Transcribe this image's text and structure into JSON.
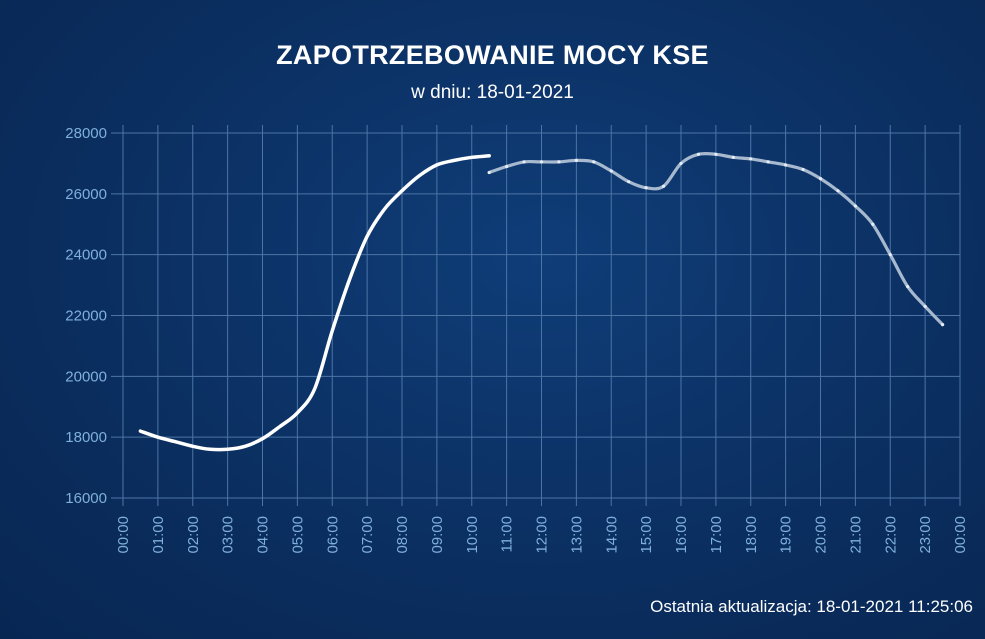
{
  "header": {
    "title": "ZAPOTRZEBOWANIE MOCY KSE",
    "subtitle": "w dniu: 18-01-2021"
  },
  "footer": {
    "updated": "Ostatnia aktualizacja: 18-01-2021 11:25:06"
  },
  "colors": {
    "background": "#0b2f61",
    "grid": "#4c74a6",
    "tick_label": "#7fb0dc",
    "actual_line": "#ffffff",
    "forecast_line": "#a7b9cf"
  },
  "chart_data": {
    "type": "line",
    "title": "ZAPOTRZEBOWANIE MOCY KSE",
    "subtitle": "w dniu: 18-01-2021",
    "xlabel": "",
    "ylabel": "",
    "ylim": [
      16000,
      28000
    ],
    "y_ticks": [
      16000,
      18000,
      20000,
      22000,
      24000,
      26000,
      28000
    ],
    "y_tick_labels": [
      "16000",
      "18000",
      "20000",
      "22000",
      "24000",
      "26000",
      "28000"
    ],
    "x_tick_labels": [
      "00:00",
      "01:00",
      "02:00",
      "03:00",
      "04:00",
      "05:00",
      "06:00",
      "07:00",
      "08:00",
      "09:00",
      "10:00",
      "11:00",
      "12:00",
      "13:00",
      "14:00",
      "15:00",
      "16:00",
      "17:00",
      "18:00",
      "19:00",
      "20:00",
      "21:00",
      "22:00",
      "23:00",
      "00:00"
    ],
    "grid": true,
    "legend": "none",
    "series": [
      {
        "style": "actual",
        "x": [
          0.5,
          1.0,
          1.5,
          2.0,
          2.5,
          3.0,
          3.5,
          4.0,
          4.5,
          5.0,
          5.5,
          6.0,
          6.5,
          7.0,
          7.5,
          8.0,
          8.5,
          9.0,
          9.5,
          10.0,
          10.5
        ],
        "values": [
          18200,
          18000,
          17850,
          17700,
          17600,
          17600,
          17700,
          17950,
          18350,
          18800,
          19600,
          21500,
          23200,
          24600,
          25500,
          26100,
          26600,
          26950,
          27100,
          27200,
          27250
        ]
      },
      {
        "style": "forecast",
        "x": [
          10.5,
          11.0,
          11.5,
          12.0,
          12.5,
          13.0,
          13.5,
          14.0,
          14.5,
          15.0,
          15.5,
          16.0,
          16.5,
          17.0,
          17.5,
          18.0,
          18.5,
          19.0,
          19.5,
          20.0,
          20.5,
          21.0,
          21.5,
          22.0,
          22.5,
          23.0,
          23.5
        ],
        "values": [
          26700,
          26900,
          27050,
          27050,
          27050,
          27100,
          27050,
          26750,
          26400,
          26200,
          26250,
          27000,
          27300,
          27300,
          27200,
          27150,
          27050,
          26950,
          26800,
          26500,
          26100,
          25600,
          25000,
          24000,
          22950,
          22300,
          21700
        ]
      }
    ]
  }
}
